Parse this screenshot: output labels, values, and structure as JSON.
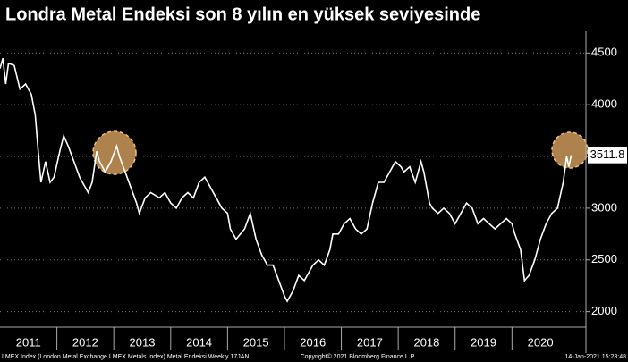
{
  "chart_data": {
    "type": "line",
    "title": "Londra Metal Endeksi son 8 yılın en yüksek seviyesinde",
    "x": [
      2011.0,
      2011.05,
      2011.1,
      2011.15,
      2011.25,
      2011.35,
      2011.45,
      2011.55,
      2011.62,
      2011.68,
      2011.72,
      2011.8,
      2011.88,
      2011.95,
      2012.05,
      2012.12,
      2012.2,
      2012.3,
      2012.4,
      2012.5,
      2012.55,
      2012.62,
      2012.7,
      2012.75,
      2012.85,
      2012.95,
      2013.05,
      2013.1,
      2013.2,
      2013.3,
      2013.4,
      2013.45,
      2013.55,
      2013.65,
      2013.8,
      2013.9,
      2014.0,
      2014.1,
      2014.2,
      2014.3,
      2014.4,
      2014.5,
      2014.6,
      2014.7,
      2014.8,
      2014.9,
      2015.0,
      2015.05,
      2015.15,
      2015.3,
      2015.4,
      2015.5,
      2015.6,
      2015.7,
      2015.8,
      2015.9,
      2016.0,
      2016.05,
      2016.15,
      2016.25,
      2016.35,
      2016.5,
      2016.6,
      2016.7,
      2016.8,
      2016.85,
      2016.95,
      2017.05,
      2017.15,
      2017.25,
      2017.35,
      2017.45,
      2017.55,
      2017.65,
      2017.75,
      2017.85,
      2017.95,
      2018.05,
      2018.1,
      2018.2,
      2018.3,
      2018.4,
      2018.45,
      2018.55,
      2018.6,
      2018.7,
      2018.8,
      2018.9,
      2019.0,
      2019.1,
      2019.2,
      2019.3,
      2019.4,
      2019.5,
      2019.6,
      2019.7,
      2019.8,
      2019.9,
      2020.0,
      2020.05,
      2020.15,
      2020.22,
      2020.3,
      2020.4,
      2020.5,
      2020.6,
      2020.7,
      2020.8,
      2020.9,
      2020.96,
      2021.0,
      2021.04
    ],
    "series": [
      {
        "name": "LMEX Index",
        "color": "#ffffff",
        "values": [
          4350,
          4450,
          4200,
          4400,
          4380,
          4150,
          4200,
          4100,
          3900,
          3500,
          3250,
          3450,
          3250,
          3300,
          3550,
          3700,
          3600,
          3450,
          3300,
          3200,
          3150,
          3250,
          3550,
          3450,
          3350,
          3450,
          3600,
          3500,
          3350,
          3200,
          3050,
          2950,
          3100,
          3150,
          3100,
          3150,
          3050,
          3000,
          3100,
          3150,
          3100,
          3250,
          3300,
          3200,
          3100,
          3000,
          2950,
          2800,
          2700,
          2800,
          2950,
          2700,
          2550,
          2450,
          2450,
          2300,
          2150,
          2100,
          2200,
          2350,
          2300,
          2450,
          2500,
          2450,
          2600,
          2750,
          2750,
          2850,
          2900,
          2800,
          2750,
          2800,
          3050,
          3250,
          3250,
          3350,
          3450,
          3400,
          3350,
          3400,
          3250,
          3450,
          3350,
          3050,
          3000,
          2950,
          3000,
          2950,
          2850,
          2950,
          3050,
          3000,
          2850,
          2900,
          2850,
          2800,
          2850,
          2900,
          2850,
          2750,
          2600,
          2300,
          2350,
          2500,
          2700,
          2850,
          2950,
          3000,
          3250,
          3500,
          3400,
          3511.8
        ]
      }
    ],
    "xlim": [
      2011.0,
      2021.3
    ],
    "xticks": [
      {
        "value": 2011.5,
        "label": "2011"
      },
      {
        "value": 2012.5,
        "label": "2012"
      },
      {
        "value": 2013.5,
        "label": "2013"
      },
      {
        "value": 2014.5,
        "label": "2014"
      },
      {
        "value": 2015.5,
        "label": "2015"
      },
      {
        "value": 2016.5,
        "label": "2016"
      },
      {
        "value": 2017.5,
        "label": "2017"
      },
      {
        "value": 2018.5,
        "label": "2018"
      },
      {
        "value": 2019.5,
        "label": "2019"
      },
      {
        "value": 2020.5,
        "label": "2020"
      }
    ],
    "ylim": [
      1850,
      4710
    ],
    "yticks": [
      2000,
      2500,
      3000,
      3500,
      4000,
      4500
    ],
    "grid": true,
    "footer": {
      "source": "LMEX Index (London Metal Exchange LMEX Metals Index) Metal Endeksi  Weekly 17JAN",
      "copyright": "Copyright© 2021 Bloomberg Finance L.P.",
      "timestamp": "14-Jan-2021 15:23:48"
    }
  }
}
